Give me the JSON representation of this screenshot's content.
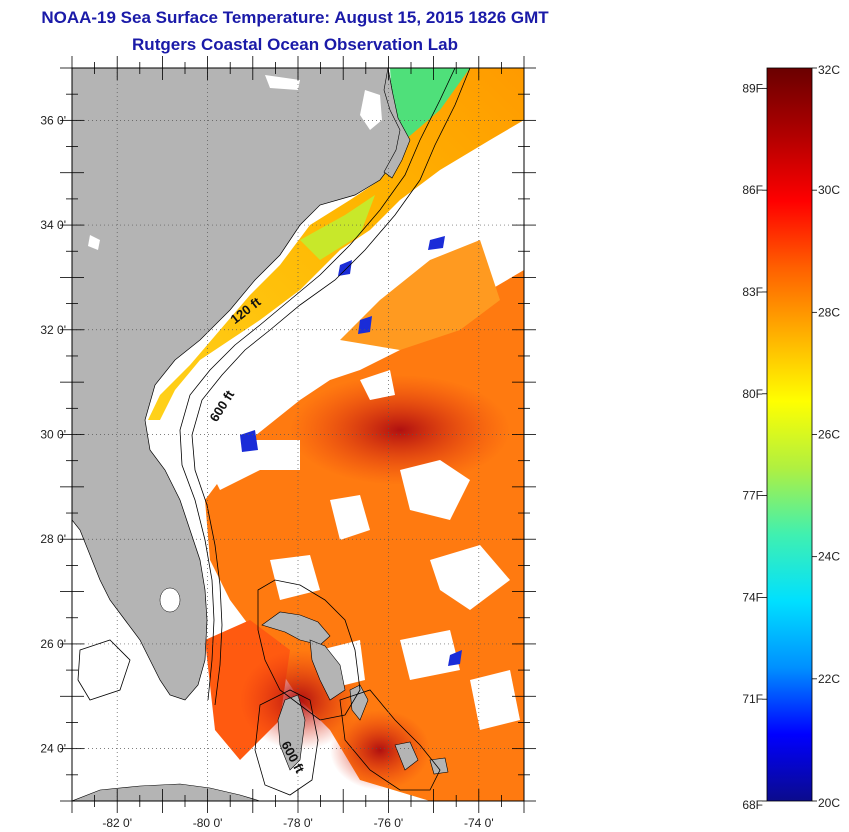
{
  "header": {
    "title": "NOAA-19 Sea Surface Temperature:  August 15, 2015 1826 GMT",
    "subtitle": "Rutgers Coastal Ocean Observation Lab"
  },
  "map": {
    "lon_range": [
      -83,
      -73
    ],
    "lat_range": [
      23,
      37
    ],
    "lat_ticks": [
      {
        "value": 36,
        "label": "36 0'"
      },
      {
        "value": 34,
        "label": "34 0'"
      },
      {
        "value": 32,
        "label": "32 0'"
      },
      {
        "value": 30,
        "label": "30 0'"
      },
      {
        "value": 28,
        "label": "28 0'"
      },
      {
        "value": 26,
        "label": "26 0'"
      },
      {
        "value": 24,
        "label": "24 0'"
      }
    ],
    "lon_ticks": [
      {
        "value": -82,
        "label": "-82 0'"
      },
      {
        "value": -80,
        "label": "-80 0'"
      },
      {
        "value": -78,
        "label": "-78 0'"
      },
      {
        "value": -76,
        "label": "-76 0'"
      },
      {
        "value": -74,
        "label": "-74 0'"
      }
    ],
    "contour_labels": [
      {
        "text": "120 ft",
        "lon": -79.1,
        "lat": 32.3
      },
      {
        "text": "600 ft",
        "lon": -79.6,
        "lat": 30.5
      },
      {
        "text": "600 ft",
        "lon": -78.2,
        "lat": 23.8
      }
    ],
    "colors": {
      "land": "#b4b4b4",
      "cloud": "#ffffff",
      "outline": "#000000"
    }
  },
  "colorbar": {
    "celsius_range": [
      20,
      32
    ],
    "fahrenheit_labels": [
      "89F",
      "86F",
      "83F",
      "80F",
      "77F",
      "74F",
      "71F",
      "68F"
    ],
    "fahrenheit_values": [
      89,
      86,
      83,
      80,
      77,
      74,
      71,
      68
    ],
    "celsius_labels": [
      "32C",
      "30C",
      "28C",
      "26C",
      "24C",
      "22C",
      "20C"
    ],
    "celsius_values": [
      32,
      30,
      28,
      26,
      24,
      22,
      20
    ],
    "stops": [
      "#0b0b8c",
      "#0000ff",
      "#0090ff",
      "#00e0ff",
      "#40f0b0",
      "#b0f040",
      "#ffff00",
      "#ffb000",
      "#ff6000",
      "#ff0000",
      "#b00000",
      "#6a0000"
    ]
  }
}
